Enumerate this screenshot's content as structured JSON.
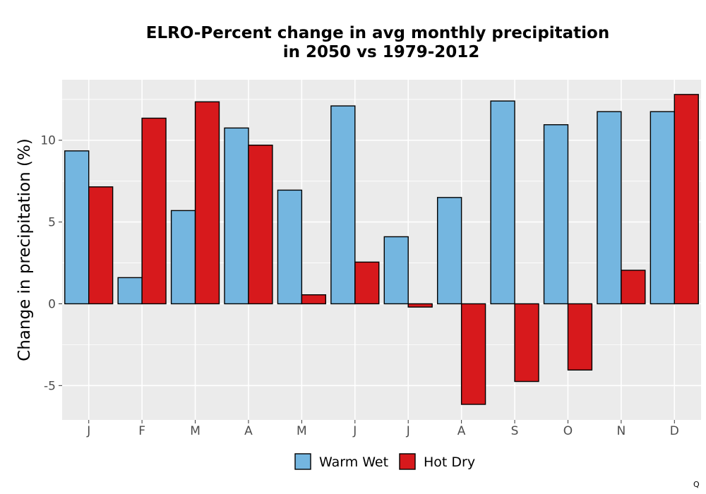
{
  "chart_data": {
    "type": "bar",
    "title": "ELRO-Percent change in avg monthly precipitation in 2050 vs 1979-2012",
    "title_lines": [
      "ELRO-Percent change in avg monthly precipitation",
      "in 2050 vs 1979-2012"
    ],
    "xlabel": "",
    "ylabel": "Change in precipitation (%)",
    "categories": [
      "J",
      "F",
      "M",
      "A",
      "M",
      "J",
      "J",
      "A",
      "S",
      "O",
      "N",
      "D"
    ],
    "series": [
      {
        "name": "Warm Wet",
        "color": "#74b6e0",
        "values": [
          9.35,
          1.6,
          5.7,
          10.75,
          6.95,
          12.1,
          4.1,
          6.5,
          12.4,
          10.95,
          11.75,
          11.75
        ]
      },
      {
        "name": "Hot Dry",
        "color": "#d7191c",
        "values": [
          7.15,
          11.35,
          12.35,
          9.7,
          0.55,
          2.55,
          -0.2,
          -6.15,
          -4.75,
          -4.05,
          2.05,
          12.8
        ]
      }
    ],
    "ylim": [
      -7.1,
      13.7
    ],
    "yticks": [
      -5,
      0,
      5,
      10
    ],
    "ytick_labels": [
      "-5",
      "0",
      "5",
      "10"
    ],
    "grid": true,
    "legend_position": "bottom",
    "panel_background": "#ebebeb",
    "gridline_color": "#ffffff",
    "bar_outline_color": "#000000"
  },
  "corner_mark": "Q"
}
